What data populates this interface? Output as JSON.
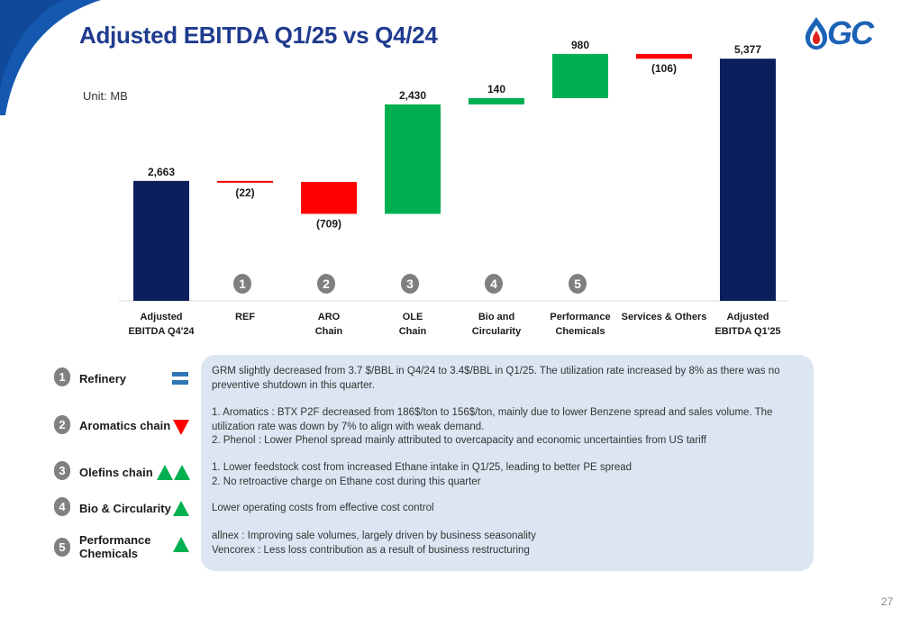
{
  "header": {
    "title": "Adjusted EBITDA Q1/25 vs Q4/24",
    "logo_text": "GC"
  },
  "unit_label": "Unit: MB",
  "colors": {
    "title": "#1f3b8e",
    "total": "#0b1f5c",
    "increase": "#00b050",
    "decrease": "#ff0000",
    "badge": "#808080",
    "neutral_icon": "#2e75b6",
    "notes_bg": "#dce6f2",
    "logo": "#1b63b6"
  },
  "chart_data": {
    "type": "bar",
    "subtype": "waterfall",
    "unit": "MB",
    "categories": [
      [
        "Adjusted",
        "EBITDA Q4'24"
      ],
      [
        "REF"
      ],
      [
        "ARO",
        "Chain"
      ],
      [
        "OLE",
        "Chain"
      ],
      [
        "Bio and",
        "Circularity"
      ],
      [
        "Performance",
        "Chemicals"
      ],
      [
        "Services & Others"
      ],
      [
        "Adjusted",
        "EBITDA Q1'25"
      ]
    ],
    "values": [
      2663,
      -22,
      -709,
      2430,
      140,
      980,
      -106,
      5377
    ],
    "value_labels": [
      "2,663",
      "(22)",
      "(709)",
      "2,430",
      "140",
      "980",
      "(106)",
      "5,377"
    ],
    "bar_kinds": [
      "total",
      "delta",
      "delta",
      "delta",
      "delta",
      "delta",
      "delta",
      "total"
    ],
    "markers": [
      "",
      "1",
      "2",
      "3",
      "4",
      "5",
      "",
      ""
    ],
    "ylim": [
      0,
      6000
    ],
    "grid": false,
    "legend": "none"
  },
  "legend": [
    {
      "num": "1",
      "label": "Refinery",
      "icon": "equal-icon"
    },
    {
      "num": "2",
      "label": "Aromatics chain",
      "icon": "down-triangle-icon"
    },
    {
      "num": "3",
      "label": "Olefins chain",
      "icon": "double-up-triangle-icon"
    },
    {
      "num": "4",
      "label": "Bio & Circularity",
      "icon": "up-triangle-icon"
    },
    {
      "num": "5",
      "label": "Performance Chemicals",
      "icon": "up-triangle-icon"
    }
  ],
  "notes": [
    {
      "text": "GRM slightly decreased from 3.7 $/BBL in Q4/24 to 3.4$/BBL in Q1/25. The utilization rate increased by 8% as there was no preventive shutdown in this quarter."
    },
    {
      "text": "1. Aromatics : BTX P2F decreased from 186$/ton to 156$/ton, mainly due to lower Benzene spread and sales volume. The utilization rate was down by 7% to align with weak demand.\n2. Phenol : Lower Phenol spread mainly attributed to overcapacity and economic uncertainties from US tariff"
    },
    {
      "text": "1. Lower feedstock cost from increased Ethane intake in Q1/25, leading to better PE spread\n2. No retroactive charge on Ethane cost during this quarter"
    },
    {
      "text": "Lower operating costs from effective cost control"
    },
    {
      "text": "allnex :  Improving sale volumes, largely driven by business seasonality\nVencorex : Less loss contribution as a result of business restructuring"
    }
  ],
  "page_number": "27"
}
